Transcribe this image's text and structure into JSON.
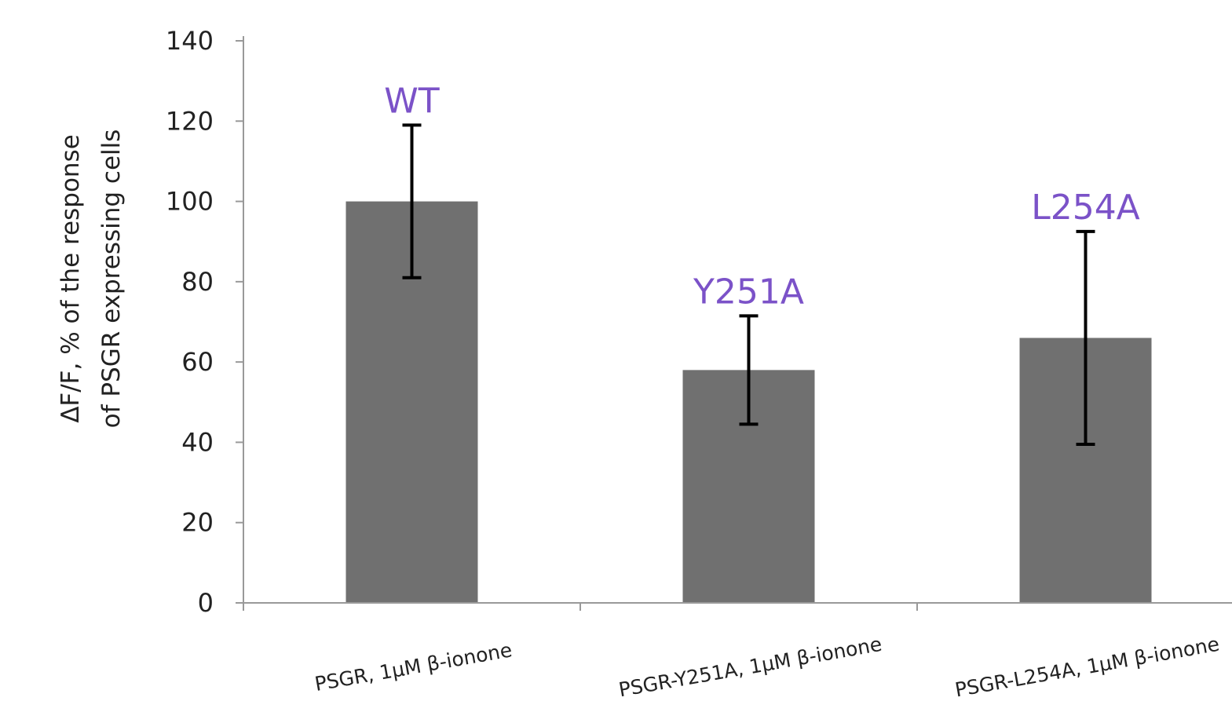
{
  "chart_data": {
    "type": "bar",
    "categories": [
      "PSGR, 1µM β-ionone",
      "PSGR-Y251A, 1µM β-ionone",
      "PSGR-L254A, 1µM β-ionone"
    ],
    "values": [
      100,
      58,
      66
    ],
    "error": [
      19,
      13.5,
      26.5
    ],
    "annotations": [
      "WT",
      "Y251A",
      "L254A"
    ],
    "ylabel_line1": "ΔF/F, %  of the response",
    "ylabel_line2": "of PSGR expressing cells",
    "xlabel": "",
    "ylim": [
      0,
      140
    ],
    "yticks": [
      0,
      20,
      40,
      60,
      80,
      100,
      120,
      140
    ],
    "grid": false,
    "legend": "none",
    "colors": {
      "bar": "#707070",
      "error_bar": "#000000",
      "axis": "#999999",
      "annotation": "#7b52c8"
    }
  }
}
